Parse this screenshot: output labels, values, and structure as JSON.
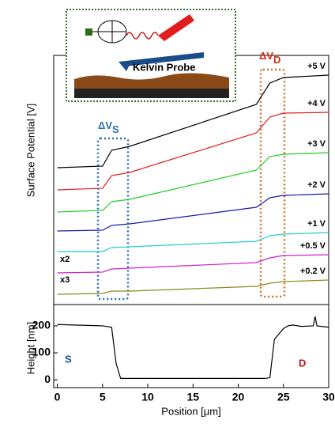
{
  "chart_data": [
    {
      "type": "line",
      "ylabel": "Surface Potential [V]",
      "x": [
        0,
        5,
        6,
        8,
        22,
        23.5,
        25,
        30
      ],
      "xlim": [
        -0.4,
        30
      ],
      "ylim": [
        0,
        315
      ],
      "series": [
        {
          "name": "+5 V",
          "color": "#000000",
          "values": [
            173,
            175,
            195,
            200,
            253,
            280,
            287,
            290
          ]
        },
        {
          "name": "+4 V",
          "color": "#e0201c",
          "values": [
            145,
            147,
            163,
            167,
            217,
            237,
            242,
            243
          ]
        },
        {
          "name": "+3 V",
          "color": "#22cc22",
          "values": [
            117,
            119,
            130,
            133,
            170,
            187,
            190,
            192
          ]
        },
        {
          "name": "+2 V",
          "color": "#1a1aa6",
          "values": [
            93,
            94,
            100,
            102,
            123,
            135,
            138,
            140
          ]
        },
        {
          "name": "+1 V",
          "color": "#22cccc",
          "values": [
            67,
            67,
            72,
            73,
            80,
            87,
            89,
            91
          ]
        },
        {
          "name": "+0.5 V",
          "color": "#cc22cc",
          "values": [
            40,
            41,
            45,
            46,
            53,
            59,
            62,
            63
          ]
        },
        {
          "name": "+0.2 V",
          "color": "#8a8a1a",
          "values": [
            13,
            14,
            17,
            17,
            23,
            27,
            29,
            31
          ]
        }
      ],
      "delta_s": "ΔV",
      "delta_s_sub": "S",
      "delta_d": "ΔV",
      "delta_d_sub": "D",
      "scale_notes": [
        "x2",
        "x3"
      ],
      "inset_label": "Kelvin Probe"
    },
    {
      "type": "line",
      "ylabel": "Height [nm]",
      "xlabel": "Position [μm]",
      "x": [
        0,
        5,
        6,
        6.5,
        7,
        20,
        22,
        23,
        23.5,
        24,
        25,
        25.5,
        26,
        27,
        28.3,
        28.5,
        28.7,
        30
      ],
      "values": [
        205,
        200,
        195,
        60,
        5,
        5,
        5,
        5,
        8,
        150,
        190,
        200,
        203,
        198,
        200,
        235,
        200,
        195
      ],
      "color": "#000000",
      "xlim": [
        -0.4,
        30
      ],
      "xticks": [
        0,
        5,
        10,
        15,
        20,
        25,
        30
      ],
      "ylim": [
        -29,
        279
      ],
      "yticks": [
        0,
        100,
        200
      ],
      "electrodes": [
        "S",
        "D"
      ]
    }
  ]
}
